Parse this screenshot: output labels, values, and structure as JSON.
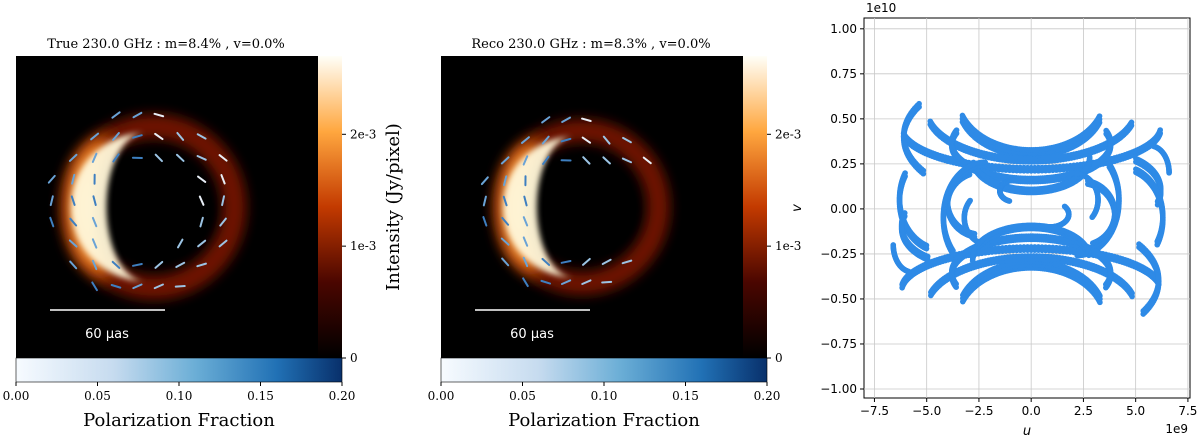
{
  "panels": [
    {
      "title": "True 230.0 GHz : m=8.4% , v=0.0%",
      "scalebar_label": "60 μas",
      "ring": {
        "r": 0.58,
        "dx": 0.14,
        "bright_angle": 180,
        "holes": 0.0
      },
      "colorbar": {
        "label": "Intensity (Jy/pixel)",
        "ticks": [
          {
            "v": 0,
            "t": "0"
          },
          {
            "v": 0.001,
            "t": "1e-3"
          },
          {
            "v": 0.002,
            "t": "2e-3"
          }
        ],
        "vmax": 0.0027
      },
      "pol_colorbar": {
        "label": "Polarization Fraction",
        "ticks": [
          "0.00",
          "0.05",
          "0.10",
          "0.15",
          "0.20"
        ]
      }
    },
    {
      "title": "Reco 230.0 GHz : m=8.3% , v=0.0%",
      "scalebar_label": "60 μas",
      "ring": {
        "r": 0.55,
        "dx": 0.12,
        "bright_angle": 180,
        "holes": 1.0
      },
      "colorbar": {
        "label": "",
        "ticks": [
          {
            "v": 0,
            "t": "0"
          },
          {
            "v": 0.001,
            "t": "1e-3"
          },
          {
            "v": 0.002,
            "t": "2e-3"
          }
        ],
        "vmax": 0.0027
      },
      "pol_colorbar": {
        "label": "Polarization Fraction",
        "ticks": [
          "0.00",
          "0.05",
          "0.10",
          "0.15",
          "0.20"
        ]
      }
    }
  ],
  "chart_data": {
    "type": "scatter",
    "title": "",
    "xlabel": "u",
    "ylabel": "v",
    "x_exponent": "1e9",
    "y_exponent": "1e10",
    "xlim": [
      -8.0,
      7.6
    ],
    "ylim": [
      -1.05,
      1.06
    ],
    "grid": true,
    "marker_color": "#2e8ae6",
    "x_ticks": [
      -7.5,
      -5.0,
      -2.5,
      0.0,
      2.5,
      5.0,
      7.5
    ],
    "x_tick_labels": [
      "−7.5",
      "−5.0",
      "−2.5",
      "0.0",
      "2.5",
      "5.0",
      "7.5"
    ],
    "y_ticks": [
      -1.0,
      -0.75,
      -0.5,
      -0.25,
      0.0,
      0.25,
      0.5,
      0.75,
      1.0
    ],
    "y_tick_labels": [
      "−1.00",
      "−0.75",
      "−0.50",
      "−0.25",
      "0.00",
      "0.25",
      "0.50",
      "0.75",
      "1.00"
    ],
    "tracks": [
      {
        "cx": 0.0,
        "cy": 0.6,
        "rx": 3.5,
        "ry": 0.29,
        "t0": 200,
        "t1": 340,
        "w": 3
      },
      {
        "cx": 0.0,
        "cy": 0.55,
        "rx": 5.0,
        "ry": 0.28,
        "t0": 195,
        "t1": 345,
        "w": 2
      },
      {
        "cx": 0.0,
        "cy": 0.45,
        "rx": 6.2,
        "ry": 0.23,
        "t0": 190,
        "t1": 355,
        "w": 2
      },
      {
        "cx": -0.6,
        "cy": 0.4,
        "rx": 5.5,
        "ry": 0.35,
        "t0": 150,
        "t1": 215,
        "w": 2
      },
      {
        "cx": 0.0,
        "cy": 0.36,
        "rx": 3.8,
        "ry": 0.2,
        "t0": 160,
        "t1": 380,
        "w": 2
      },
      {
        "cx": 0.0,
        "cy": 0.28,
        "rx": 2.8,
        "ry": 0.18,
        "t0": 190,
        "t1": 360,
        "w": 2
      },
      {
        "cx": 2.2,
        "cy": 0.05,
        "rx": 2.0,
        "ry": 0.3,
        "t0": 270,
        "t1": 400,
        "w": 2
      },
      {
        "cx": 3.7,
        "cy": 0.1,
        "rx": 2.5,
        "ry": 0.2,
        "t0": -20,
        "t1": 60,
        "w": 2
      },
      {
        "cx": 5.7,
        "cy": 0.2,
        "rx": 0.9,
        "ry": 0.15,
        "t0": 0,
        "t1": 80,
        "w": 1
      },
      {
        "cx": -2.4,
        "cy": 0.03,
        "rx": 1.6,
        "ry": 0.18,
        "t0": 110,
        "t1": 260,
        "w": 2
      },
      {
        "cx": -0.8,
        "cy": 0.1,
        "rx": 0.7,
        "ry": 0.06,
        "t0": 90,
        "t1": 250,
        "w": 1
      },
      {
        "cx": 0.9,
        "cy": -0.03,
        "rx": 0.9,
        "ry": 0.07,
        "t0": 250,
        "t1": 400,
        "w": 1
      },
      {
        "cx": -2.0,
        "cy": -0.05,
        "rx": 1.2,
        "ry": 0.15,
        "t0": 140,
        "t1": 260,
        "w": 1
      },
      {
        "cx": -4.3,
        "cy": 0.05,
        "rx": 2.0,
        "ry": 0.28,
        "t0": 150,
        "t1": 250,
        "w": 2
      },
      {
        "cx": 0.0,
        "cy": -0.6,
        "rx": 3.5,
        "ry": 0.29,
        "t0": 20,
        "t1": 160,
        "w": 3
      },
      {
        "cx": 0.0,
        "cy": -0.55,
        "rx": 5.0,
        "ry": 0.28,
        "t0": 15,
        "t1": 165,
        "w": 2
      },
      {
        "cx": 0.0,
        "cy": -0.45,
        "rx": 6.2,
        "ry": 0.23,
        "t0": 10,
        "t1": 175,
        "w": 2
      },
      {
        "cx": 0.6,
        "cy": -0.4,
        "rx": 5.5,
        "ry": 0.35,
        "t0": -30,
        "t1": 35,
        "w": 2
      },
      {
        "cx": 0.0,
        "cy": -0.36,
        "rx": 3.8,
        "ry": 0.2,
        "t0": -20,
        "t1": 200,
        "w": 2
      },
      {
        "cx": 0.0,
        "cy": -0.28,
        "rx": 2.8,
        "ry": 0.18,
        "t0": 10,
        "t1": 180,
        "w": 2
      },
      {
        "cx": -2.2,
        "cy": -0.05,
        "rx": 2.0,
        "ry": 0.3,
        "t0": 90,
        "t1": 220,
        "w": 2
      },
      {
        "cx": -3.7,
        "cy": -0.1,
        "rx": 2.5,
        "ry": 0.2,
        "t0": 160,
        "t1": 240,
        "w": 2
      },
      {
        "cx": -5.7,
        "cy": -0.2,
        "rx": 0.9,
        "ry": 0.15,
        "t0": 180,
        "t1": 260,
        "w": 1
      },
      {
        "cx": 2.4,
        "cy": -0.03,
        "rx": 1.6,
        "ry": 0.18,
        "t0": -70,
        "t1": 80,
        "w": 2
      },
      {
        "cx": 2.0,
        "cy": 0.05,
        "rx": 1.2,
        "ry": 0.15,
        "t0": -40,
        "t1": 80,
        "w": 1
      },
      {
        "cx": 4.3,
        "cy": -0.05,
        "rx": 2.0,
        "ry": 0.28,
        "t0": -30,
        "t1": 70,
        "w": 2
      }
    ]
  }
}
